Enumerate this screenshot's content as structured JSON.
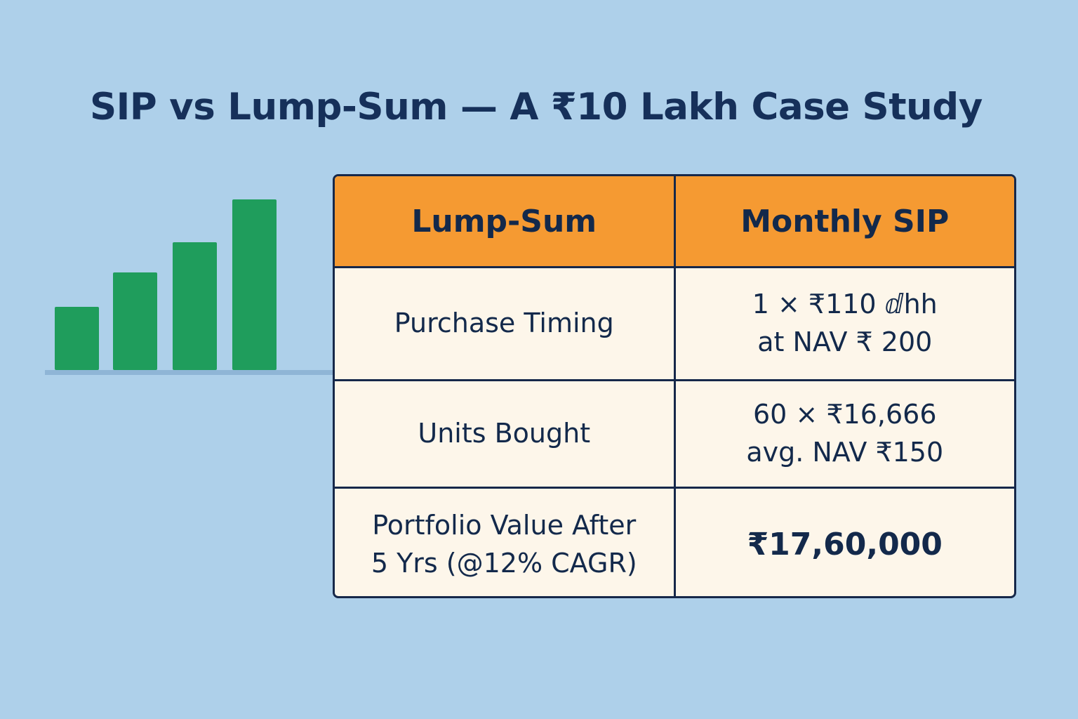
{
  "title": "SIP vs Lump-Sum — A ₹10 Lakh Case Study",
  "colors": {
    "background": "#aed0ea",
    "header": "#f59a32",
    "cell": "#fdf6ea",
    "text": "#13294b",
    "bars": "#1f9d5c"
  },
  "decorative_chart": {
    "relative_heights": [
      0.37,
      0.57,
      0.75,
      1.0
    ]
  },
  "table": {
    "headers": [
      "Lump-Sum",
      "Monthly SIP"
    ],
    "rows": [
      {
        "label": "Purchase Timing",
        "value_lines": [
          "1 × ₹110 ⅆhh",
          "at NAV ₹ 200"
        ]
      },
      {
        "label": "Units Bought",
        "value_lines": [
          "60 × ₹16,666",
          "avg. NAV ₹150"
        ]
      },
      {
        "label_lines": [
          "Portfolio Value After",
          "5 Yrs (@12% CAGR)"
        ],
        "value": "₹17,60,000"
      }
    ]
  }
}
